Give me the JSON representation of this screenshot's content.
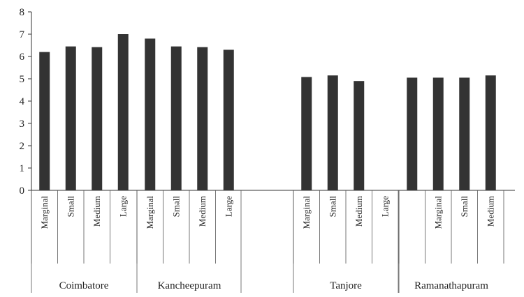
{
  "chart_data": {
    "type": "bar",
    "ylim": [
      0,
      8
    ],
    "yticks": [
      "0",
      "1",
      "2",
      "3",
      "4",
      "5",
      "6",
      "7",
      "8"
    ],
    "bar_color": "#333333",
    "groups": [
      {
        "name": "Coimbatore",
        "categories": [
          "Marginal",
          "Small",
          "Medium",
          "Large"
        ],
        "values": [
          6.2,
          6.45,
          6.42,
          7.0
        ]
      },
      {
        "name": "Kancheepuram",
        "categories": [
          "Marginal",
          "Small",
          "Medium",
          "Large"
        ],
        "values": [
          6.8,
          6.45,
          6.42,
          6.3
        ]
      },
      {
        "name": "Tanjore",
        "categories": [
          "Marginal",
          "Small",
          "Medium",
          "Large"
        ],
        "values": [
          5.08,
          5.15,
          4.9,
          null
        ]
      },
      {
        "name": "Ramanathapuram",
        "categories": [
          "",
          "Marginal",
          "Small",
          "Medium"
        ],
        "values": [
          5.05,
          5.05,
          5.05,
          5.15
        ]
      }
    ]
  }
}
